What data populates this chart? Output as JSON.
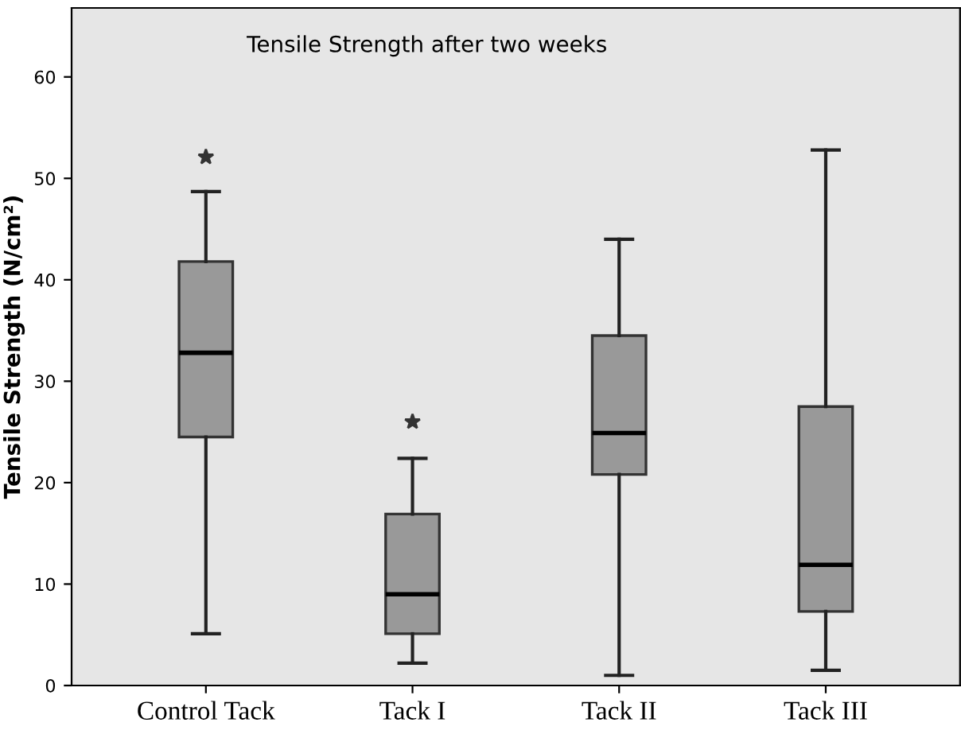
{
  "chart_data": {
    "type": "box",
    "title": "Tensile Strength after two weeks",
    "ylabel": "Tensile Strength (N/cm²)",
    "categories": [
      "Control Tack",
      "Tack I",
      "Tack II",
      "Tack III"
    ],
    "boxes": [
      {
        "low": 5.1,
        "q1": 24.5,
        "median": 32.8,
        "q3": 41.8,
        "high": 48.7,
        "outliers": [
          52.1
        ]
      },
      {
        "low": 2.2,
        "q1": 5.1,
        "median": 9.0,
        "q3": 16.9,
        "high": 22.4,
        "outliers": [
          26.0
        ]
      },
      {
        "low": 1.0,
        "q1": 20.8,
        "median": 24.9,
        "q3": 34.5,
        "high": 44.0
      },
      {
        "low": 1.5,
        "q1": 7.3,
        "median": 11.9,
        "q3": 27.5,
        "high": 52.8
      }
    ],
    "color": "#999999",
    "marker": "star",
    "ylim": [
      0,
      66.8
    ],
    "yticks": [
      0,
      10,
      20,
      30,
      40,
      50,
      60
    ],
    "grid": false,
    "legend": false
  }
}
